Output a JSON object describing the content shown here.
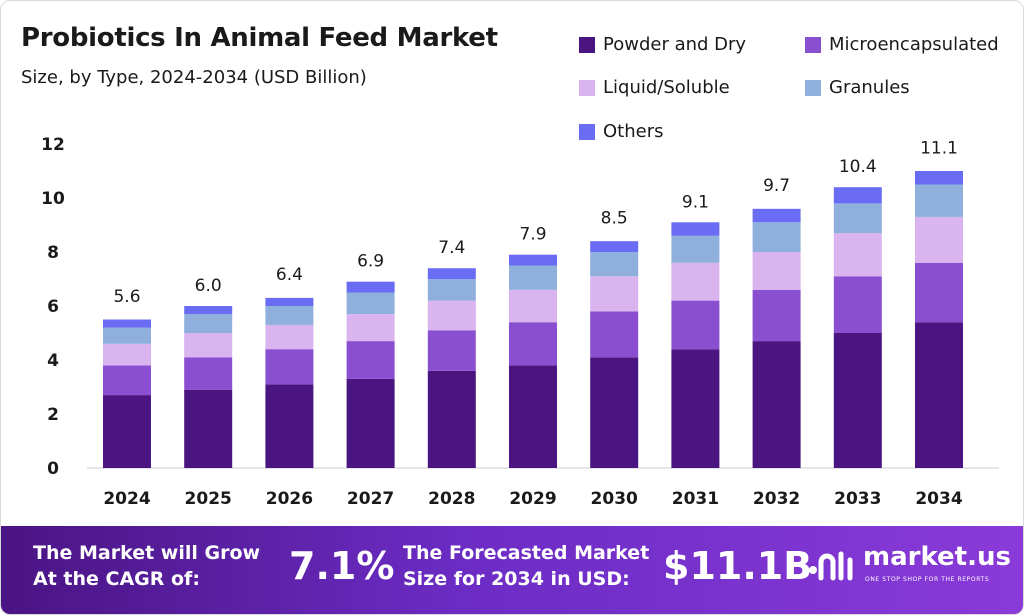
{
  "header": {
    "title": "Probiotics In Animal Feed Market",
    "subtitle": "Size, by Type, 2024-2034 (USD Billion)"
  },
  "colors": {
    "powder_and_dry": "#4a1580",
    "microencapsulated": "#8a4fd0",
    "liquid_soluble": "#d9b4ee",
    "granules": "#8fb0dc",
    "others": "#6a6cf4",
    "banner_start": "#4a1483",
    "banner_end": "#8a3ad8"
  },
  "chart_data": {
    "type": "bar",
    "stacked": true,
    "categories": [
      "2024",
      "2025",
      "2026",
      "2027",
      "2028",
      "2029",
      "2030",
      "2031",
      "2032",
      "2033",
      "2034"
    ],
    "series": [
      {
        "name": "Powder and Dry",
        "color": "#4a1580",
        "values": [
          2.7,
          2.9,
          3.1,
          3.3,
          3.6,
          3.8,
          4.1,
          4.4,
          4.7,
          5.0,
          5.4
        ]
      },
      {
        "name": "Microencapsulated",
        "color": "#8a4fd0",
        "values": [
          1.1,
          1.2,
          1.3,
          1.4,
          1.5,
          1.6,
          1.7,
          1.8,
          1.9,
          2.1,
          2.2
        ]
      },
      {
        "name": "Liquid/Soluble",
        "color": "#d9b4ee",
        "values": [
          0.8,
          0.9,
          0.9,
          1.0,
          1.1,
          1.2,
          1.3,
          1.4,
          1.4,
          1.6,
          1.7
        ]
      },
      {
        "name": "Granules",
        "color": "#8fb0dc",
        "values": [
          0.6,
          0.7,
          0.7,
          0.8,
          0.8,
          0.9,
          0.9,
          1.0,
          1.1,
          1.1,
          1.2
        ]
      },
      {
        "name": "Others",
        "color": "#6a6cf4",
        "values": [
          0.3,
          0.3,
          0.3,
          0.4,
          0.4,
          0.4,
          0.4,
          0.5,
          0.5,
          0.6,
          0.5
        ]
      }
    ],
    "totals": [
      "5.6",
      "6.0",
      "6.4",
      "6.9",
      "7.4",
      "7.9",
      "8.5",
      "9.1",
      "9.7",
      "10.4",
      "11.1"
    ],
    "y_ticks": [
      "0",
      "2",
      "4",
      "6",
      "8",
      "10",
      "12"
    ],
    "ylim": [
      0,
      12
    ],
    "xlabel": "",
    "ylabel": "",
    "grid": false,
    "legend_position": "top-right"
  },
  "banner": {
    "cagr_line1": "The Market will Grow",
    "cagr_line2": "At the CAGR of:",
    "cagr_value": "7.1%",
    "forecast_line1": "The Forecasted Market",
    "forecast_line2": "Size for 2034 in USD:",
    "forecast_value": "$11.1B",
    "brand_name": "market.us",
    "brand_tagline": "ONE STOP SHOP FOR THE REPORTS"
  }
}
